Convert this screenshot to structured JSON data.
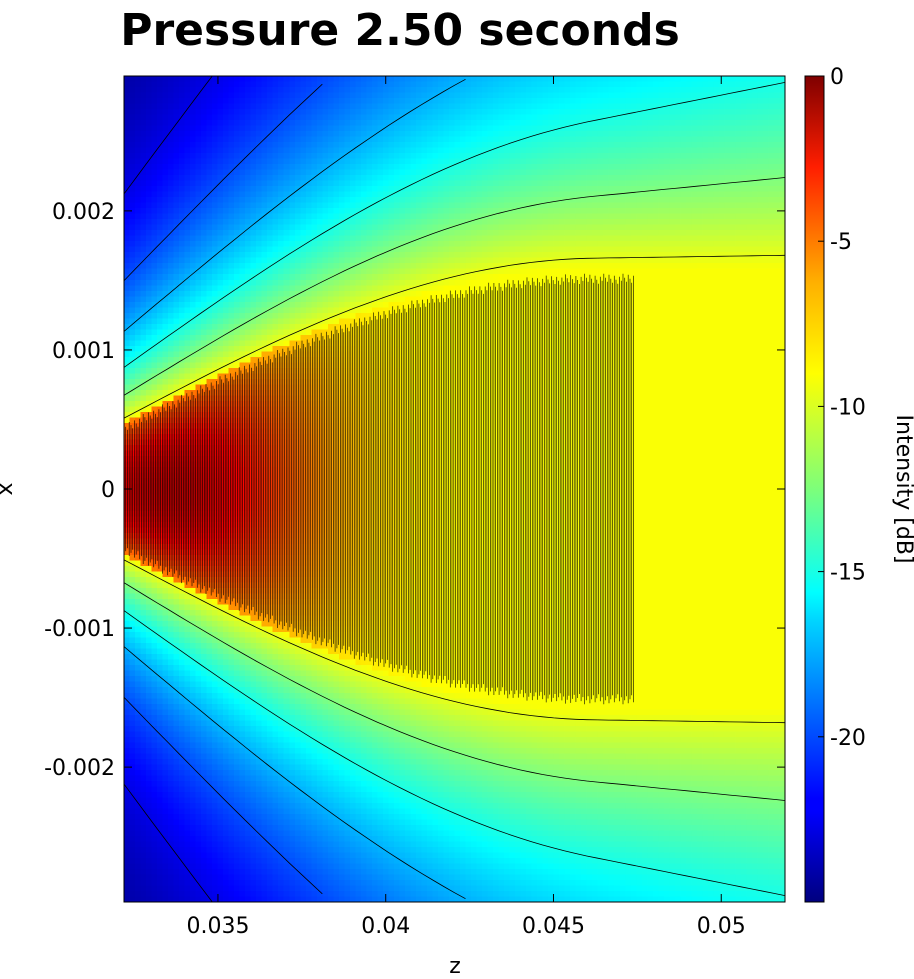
{
  "chart_data": {
    "type": "heatmap",
    "title": "Pressure 2.50 seconds",
    "xlabel": "z",
    "ylabel": "x",
    "xlim": [
      0.0322,
      0.0519
    ],
    "ylim": [
      -0.00297,
      0.00297
    ],
    "x_ticks": [
      {
        "value": 0.035,
        "label": "0.035"
      },
      {
        "value": 0.04,
        "label": "0.04"
      },
      {
        "value": 0.045,
        "label": "0.045"
      },
      {
        "value": 0.05,
        "label": "0.05"
      }
    ],
    "y_ticks": [
      {
        "value": 0.002,
        "label": "0.002"
      },
      {
        "value": 0.001,
        "label": "0.001"
      },
      {
        "value": 0,
        "label": "0"
      },
      {
        "value": -0.001,
        "label": "-0.001"
      },
      {
        "value": -0.002,
        "label": "-0.002"
      }
    ],
    "colorbar": {
      "label": "Intensity [dB]",
      "range": [
        -25,
        0
      ],
      "colormap": "jet",
      "ticks": [
        {
          "value": 0,
          "label": "0"
        },
        {
          "value": -5,
          "label": "-5"
        },
        {
          "value": -10,
          "label": "-10"
        },
        {
          "value": -15,
          "label": "-15"
        },
        {
          "value": -20,
          "label": "-20"
        }
      ]
    },
    "contour_levels_db": [
      -22.5,
      -20,
      -17.5,
      -15,
      -12.5,
      -10
    ],
    "field_description": {
      "beam_peak_db": -1.5,
      "peak_location": {
        "z": 0.0335,
        "x": 0
      },
      "plateau_db": -9.5,
      "plateau_z_range": [
        0.041,
        0.052
      ],
      "edge_min_db": -25
    },
    "grid": false,
    "legend": "colorbar-right"
  }
}
